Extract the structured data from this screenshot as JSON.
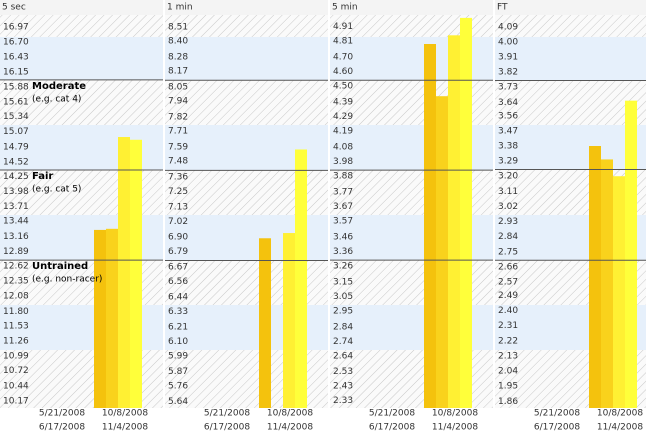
{
  "levels": [
    {
      "name": "Moderate",
      "note": "(e.g. cat 4)"
    },
    {
      "name": "Fair",
      "note": "(e.g. cat 5)"
    },
    {
      "name": "Untrained",
      "note": "(e.g. non-racer)"
    }
  ],
  "chart_data": [
    {
      "type": "bar",
      "title": "5 sec",
      "categories": [
        "5/21/2008",
        "6/17/2008",
        "10/8/2008",
        "11/4/2008"
      ],
      "values": [
        13.28,
        13.3,
        14.97,
        14.92
      ],
      "colors": [
        "#f4c20d",
        "#f9d21c",
        "#fff033",
        "#ffff3a"
      ],
      "ylim": [
        10.04,
        17.19
      ],
      "level_values": [
        16.01,
        14.37,
        12.73
      ],
      "yticks": [
        16.97,
        {
          "value": 16.7,
          "label": "16.70"
        },
        16.43,
        16.15,
        15.88,
        15.61,
        15.34,
        15.07,
        14.79,
        14.52,
        14.25,
        13.98,
        13.71,
        13.44,
        13.16,
        12.89,
        12.62,
        12.35,
        12.08,
        {
          "value": 11.8,
          "label": "11.80"
        },
        11.53,
        11.26,
        10.99,
        10.72,
        10.44,
        10.17
      ]
    },
    {
      "type": "bar",
      "title": "1 min",
      "categories": [
        "5/21/2008",
        "6/17/2008",
        "10/8/2008",
        "11/4/2008"
      ],
      "values": [
        6.89,
        null,
        6.93,
        7.57
      ],
      "colors": [
        "#f4c20d",
        "#f9d21c",
        "#fff033",
        "#ffff3a"
      ],
      "ylim": [
        5.59,
        8.6
      ],
      "level_values": [
        8.1,
        7.41,
        6.72
      ],
      "yticks": [
        8.51,
        {
          "value": 8.4,
          "label": "8.40"
        },
        8.28,
        8.17,
        8.05,
        7.94,
        7.82,
        7.71,
        7.59,
        7.48,
        7.36,
        7.25,
        7.13,
        7.02,
        {
          "value": 6.9,
          "label": "6.90"
        },
        6.79,
        6.67,
        6.56,
        6.44,
        6.33,
        6.21,
        {
          "value": 6.1,
          "label": "6.10"
        },
        5.99,
        5.87,
        5.76,
        5.64
      ]
    },
    {
      "type": "bar",
      "title": "5 min",
      "categories": [
        "5/21/2008",
        "6/17/2008",
        "10/8/2008",
        "11/4/2008"
      ],
      "values": [
        4.79,
        4.43,
        4.85,
        4.97
      ],
      "colors": [
        "#f4c20d",
        "#f9d21c",
        "#fff033",
        "#ffff3a"
      ],
      "ylim": [
        2.28,
        4.99
      ],
      "level_values": [
        4.54,
        3.92,
        3.3
      ],
      "yticks": [
        4.91,
        4.81,
        {
          "value": 4.7,
          "label": "4.70"
        },
        {
          "value": 4.6,
          "label": "4.60"
        },
        {
          "value": 4.5,
          "label": "4.50"
        },
        4.39,
        4.29,
        4.19,
        4.08,
        3.98,
        3.88,
        3.77,
        3.67,
        3.57,
        3.46,
        3.36,
        3.26,
        3.15,
        3.05,
        2.95,
        2.84,
        2.74,
        2.64,
        2.53,
        2.43,
        2.33
      ]
    },
    {
      "type": "bar",
      "title": "FT",
      "categories": [
        "5/21/2008",
        "6/17/2008",
        "10/8/2008",
        "11/4/2008"
      ],
      "values": [
        3.38,
        3.3,
        3.2,
        3.65
      ],
      "colors": [
        "#f4c20d",
        "#f9d21c",
        "#fff033",
        "#ffff3a"
      ],
      "ylim": [
        1.82,
        4.16
      ],
      "level_values": [
        3.77,
        3.24,
        2.7
      ],
      "yticks": [
        4.09,
        {
          "value": 4.0,
          "label": "4.00"
        },
        3.91,
        3.82,
        3.73,
        3.64,
        3.56,
        3.47,
        3.38,
        3.29,
        {
          "value": 3.2,
          "label": "3.20"
        },
        3.11,
        3.02,
        2.93,
        2.84,
        2.75,
        2.66,
        2.57,
        2.49,
        {
          "value": 2.4,
          "label": "2.40"
        },
        2.31,
        2.22,
        2.13,
        2.04,
        1.95,
        1.86
      ]
    }
  ]
}
